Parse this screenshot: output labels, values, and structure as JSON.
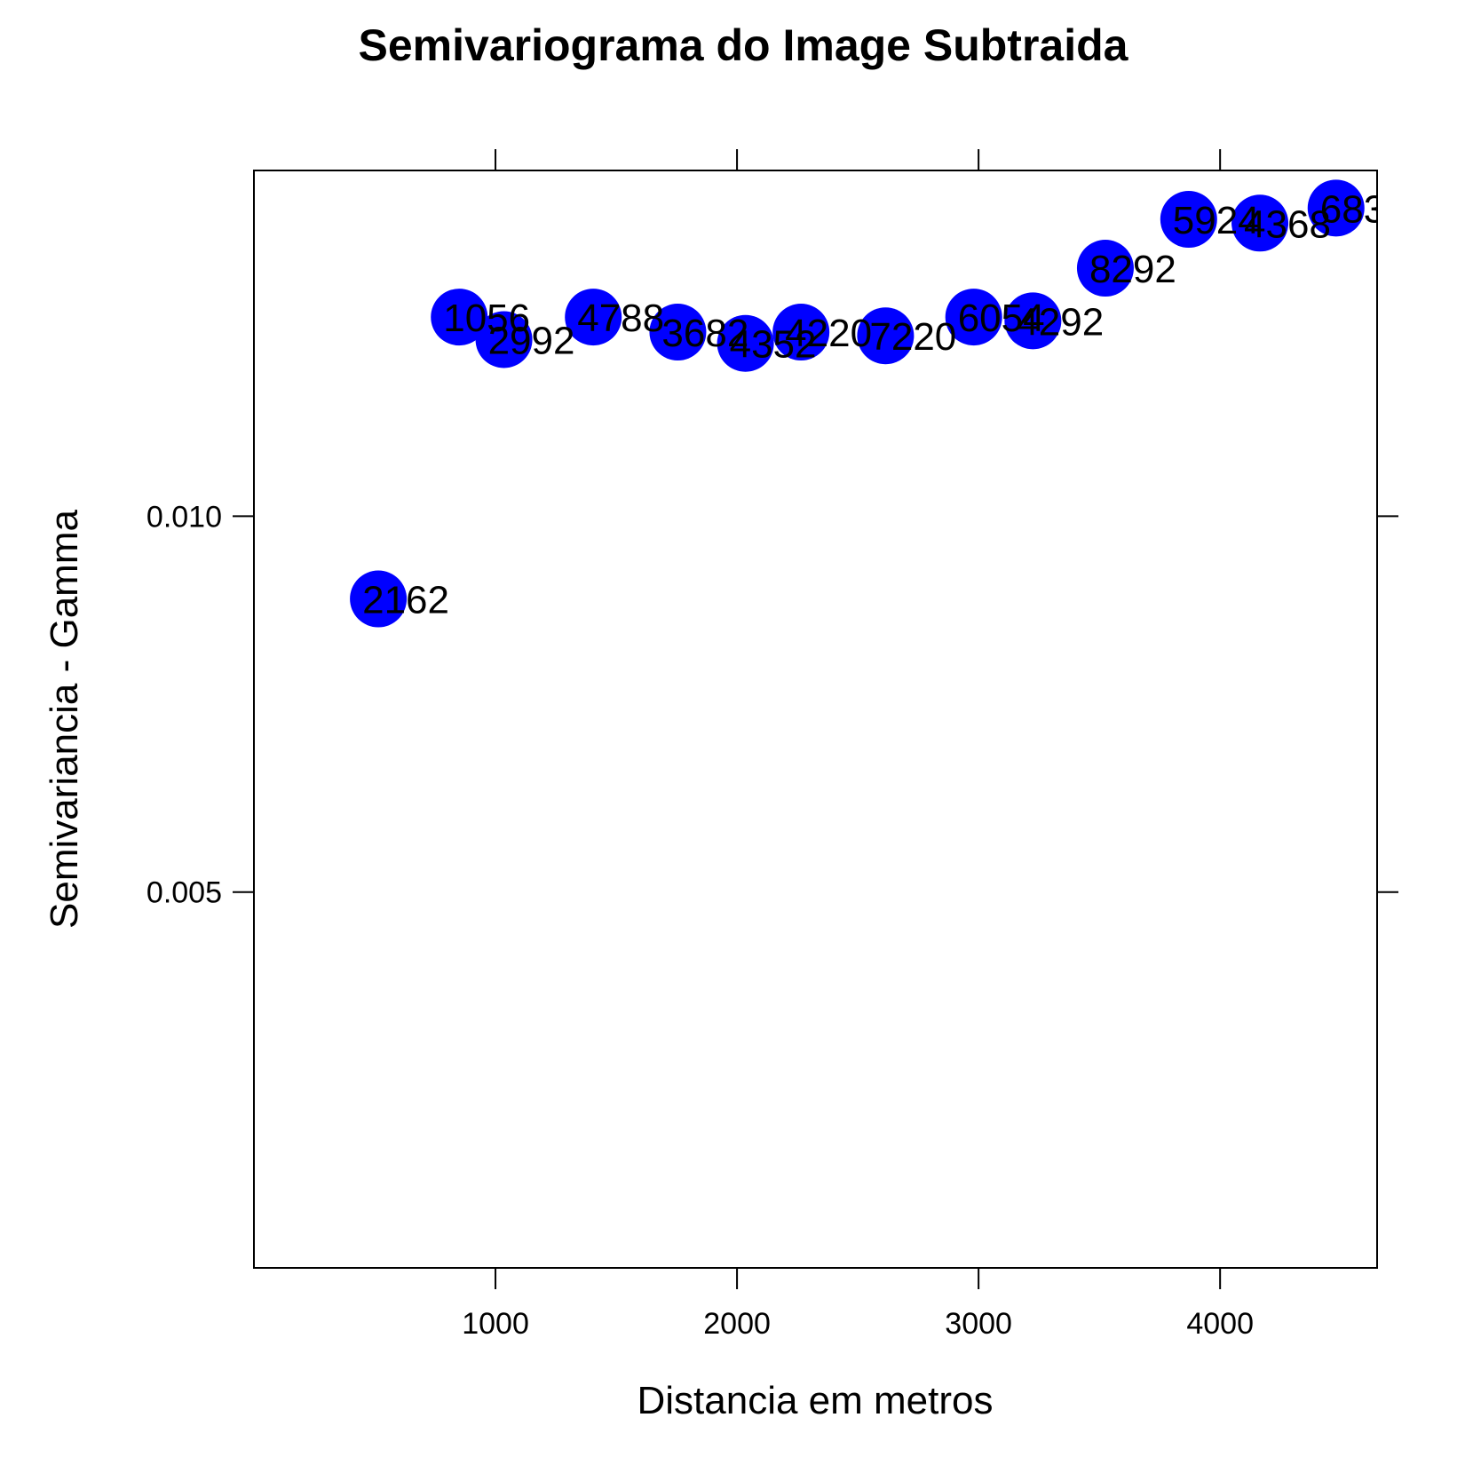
{
  "chart_data": {
    "type": "scatter",
    "title": "Semivariograma do Image Subtraida",
    "xlabel": "Distancia em metros",
    "ylabel": "Semivariancia - Gamma",
    "xlim": [
      0,
      4650
    ],
    "ylim": [
      0,
      0.0146
    ],
    "x_ticks": [
      1000,
      2000,
      3000,
      4000
    ],
    "x_tick_labels": [
      "1000",
      "2000",
      "3000",
      "4000"
    ],
    "y_ticks": [
      0.005,
      0.01
    ],
    "y_tick_labels": [
      "0.005",
      "0.010"
    ],
    "point_color": "#0000ff",
    "grid": false,
    "points": [
      {
        "x": 515,
        "y": 0.0089,
        "label": "2162"
      },
      {
        "x": 850,
        "y": 0.01265,
        "label": "1056"
      },
      {
        "x": 1035,
        "y": 0.01235,
        "label": "2992"
      },
      {
        "x": 1405,
        "y": 0.01265,
        "label": "4788"
      },
      {
        "x": 1755,
        "y": 0.01245,
        "label": "3682"
      },
      {
        "x": 2035,
        "y": 0.0123,
        "label": "4352"
      },
      {
        "x": 2265,
        "y": 0.01245,
        "label": "4220"
      },
      {
        "x": 2615,
        "y": 0.0124,
        "label": "7220"
      },
      {
        "x": 2980,
        "y": 0.01265,
        "label": "6054"
      },
      {
        "x": 3225,
        "y": 0.0126,
        "label": "4292"
      },
      {
        "x": 3525,
        "y": 0.0133,
        "label": "8292"
      },
      {
        "x": 3870,
        "y": 0.01395,
        "label": "5924"
      },
      {
        "x": 4165,
        "y": 0.0139,
        "label": "4368"
      },
      {
        "x": 4480,
        "y": 0.0141,
        "label": "683"
      }
    ]
  }
}
